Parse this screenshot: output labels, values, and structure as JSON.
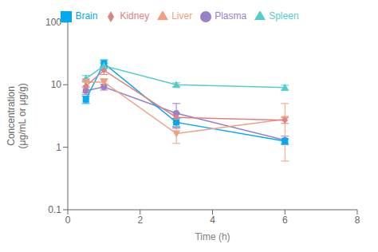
{
  "chart_data": {
    "type": "line",
    "xlabel": "Time (h)",
    "ylabel": "Concentration\n(μg/mL or μg/g)",
    "x": [
      0.5,
      1.0,
      3.0,
      6.0
    ],
    "xlim": [
      0,
      8
    ],
    "xticks": [
      0,
      2,
      4,
      6,
      8
    ],
    "ylim": [
      0.1,
      100
    ],
    "yticks": [
      0.1,
      1,
      10,
      100
    ],
    "log": "y",
    "grid": false,
    "legend": "top",
    "series": [
      {
        "name": "Plasma",
        "color": "#9b7fc7",
        "marker": "circle",
        "line_style": "solid",
        "values": [
          8.0,
          9.2,
          3.5,
          1.3
        ],
        "error_low": [
          1.0,
          1.0,
          1.5,
          0.2
        ],
        "error_high": [
          1.0,
          1.0,
          1.5,
          0.2
        ]
      },
      {
        "name": "Brain",
        "color": "#00aaee",
        "marker": "square",
        "line_style": "solid",
        "values": [
          5.8,
          22.0,
          2.5,
          1.25
        ],
        "error_low": [
          0.8,
          3.0,
          0.4,
          0.1
        ],
        "error_high": [
          0.8,
          3.0,
          0.4,
          0.1
        ]
      },
      {
        "name": "Spleen",
        "color": "#55cccc",
        "marker": "triangle-up",
        "line_style": "solid",
        "values": [
          12.5,
          20.0,
          10.0,
          9.0
        ],
        "error_low": [
          1.5,
          2.0,
          0.7,
          0.8
        ],
        "error_high": [
          1.5,
          2.0,
          0.7,
          0.8
        ]
      },
      {
        "name": "Liver",
        "color": "#f0a080",
        "marker": "triangle-down",
        "line_style": "solid",
        "values": [
          11.0,
          11.0,
          1.65,
          2.8
        ],
        "error_low": [
          1.5,
          1.5,
          0.5,
          2.2
        ],
        "error_high": [
          1.5,
          1.5,
          0.5,
          2.2
        ]
      },
      {
        "name": "Kidney",
        "color": "#e08080",
        "marker": "diamond",
        "line_style": "solid",
        "values": [
          9.5,
          17.0,
          3.0,
          2.7
        ],
        "error_low": [
          2.0,
          2.5,
          0.5,
          0.3
        ],
        "error_high": [
          2.0,
          2.5,
          0.5,
          0.3
        ]
      }
    ]
  }
}
